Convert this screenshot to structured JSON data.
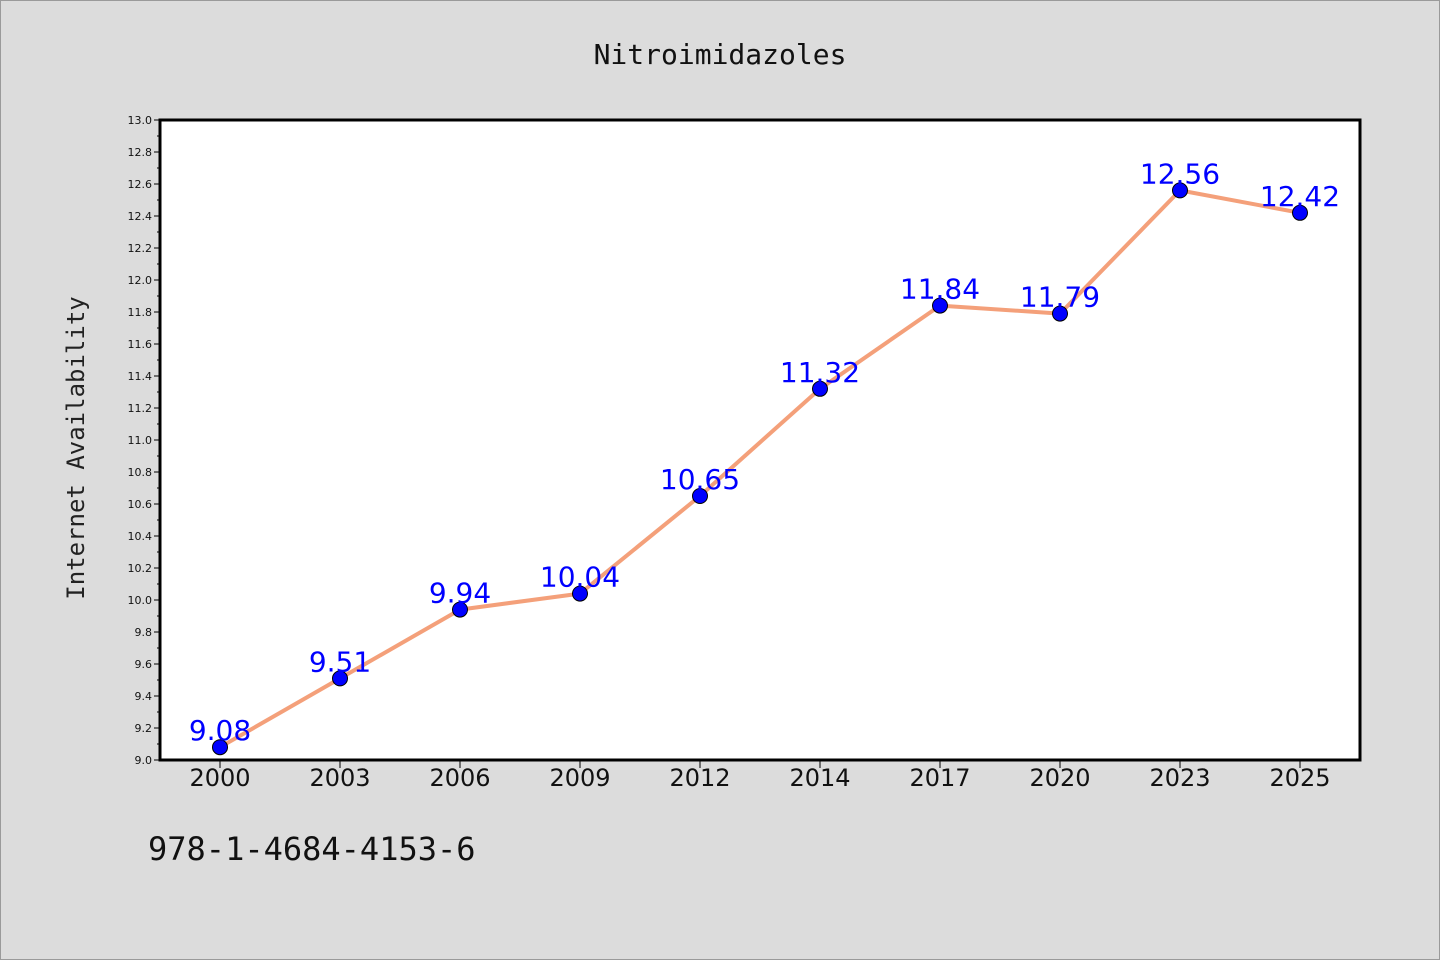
{
  "chart_data": {
    "type": "line",
    "title": "Nitroimidazoles",
    "xlabel": "",
    "ylabel": "Internet Availability",
    "categories": [
      "2000",
      "2003",
      "2006",
      "2009",
      "2012",
      "2014",
      "2017",
      "2020",
      "2023",
      "2025"
    ],
    "values": [
      9.08,
      9.51,
      9.94,
      10.04,
      10.65,
      11.32,
      11.84,
      11.79,
      12.56,
      12.42
    ],
    "data_labels": [
      "9.08",
      "9.51",
      "9.94",
      "10.04",
      "10.65",
      "11.32",
      "11.84",
      "11.79",
      "12.56",
      "12.42"
    ],
    "ylim": [
      9.0,
      13.0
    ],
    "yticks": [
      "9.0",
      "9.2",
      "9.4",
      "9.6",
      "9.8",
      "10.0",
      "10.2",
      "10.4",
      "10.6",
      "10.8",
      "11.0",
      "11.2",
      "11.4",
      "11.6",
      "11.8",
      "12.0",
      "12.2",
      "12.4",
      "12.6",
      "12.8",
      "13.0"
    ],
    "grid": false,
    "legend": "none",
    "colors": {
      "line": "#f4a07a",
      "marker": "#0000ff",
      "marker_edge": "#000000",
      "data_label": "#0000ff",
      "plot_background": "#ffffff",
      "figure_background": "#dcdcdc"
    }
  },
  "footer": {
    "code": "978-1-4684-4153-6"
  }
}
